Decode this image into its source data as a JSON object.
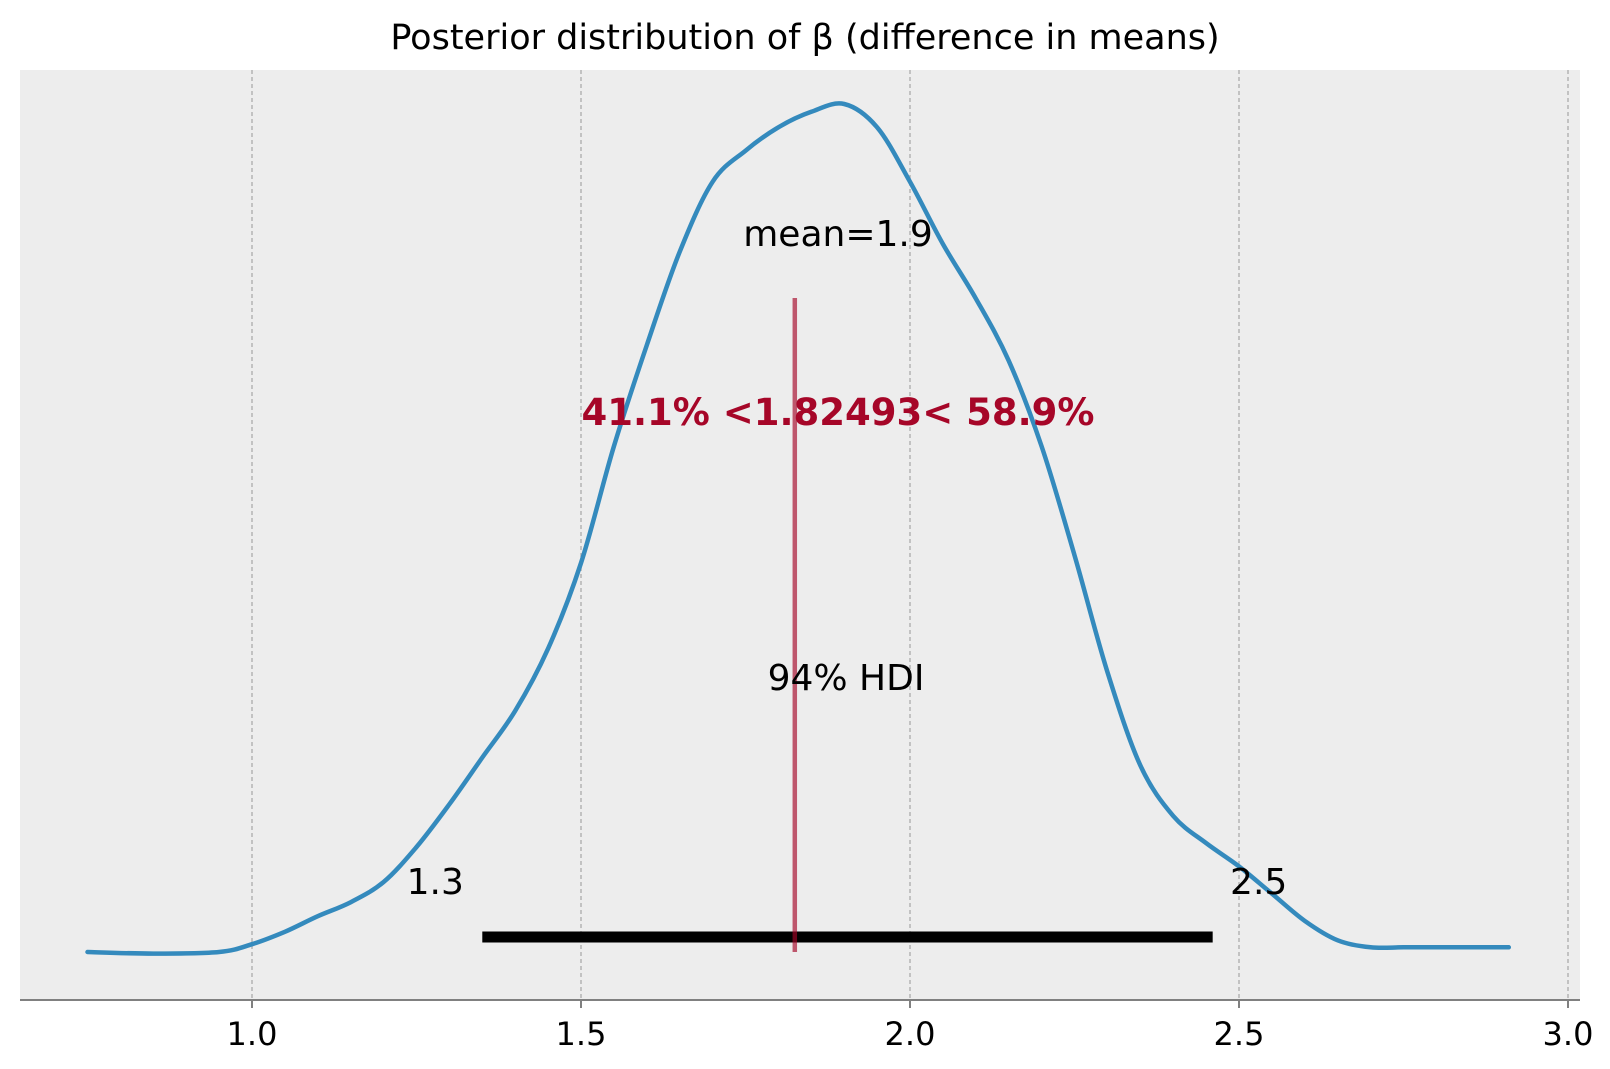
{
  "chart_data": {
    "type": "line",
    "title": "Posterior distribution of β (difference in means)",
    "xlabel": "",
    "ylabel": "",
    "xlim": [
      0.65,
      3.03
    ],
    "xticks": [
      1.0,
      1.5,
      2.0,
      2.5,
      3.0
    ],
    "xtick_labels": [
      "1.0",
      "1.5",
      "2.0",
      "2.5",
      "3.0"
    ],
    "grid": "vertical dashed",
    "density": {
      "x": [
        0.75,
        0.85,
        0.95,
        1.0,
        1.05,
        1.1,
        1.15,
        1.2,
        1.25,
        1.3,
        1.35,
        1.4,
        1.45,
        1.5,
        1.55,
        1.6,
        1.65,
        1.7,
        1.75,
        1.8,
        1.85,
        1.9,
        1.95,
        2.0,
        2.05,
        2.1,
        2.15,
        2.2,
        2.25,
        2.3,
        2.35,
        2.4,
        2.45,
        2.5,
        2.55,
        2.6,
        2.65,
        2.7,
        2.75,
        2.8,
        2.91
      ],
      "y": [
        0.0,
        -0.002,
        0.0,
        0.01,
        0.026,
        0.046,
        0.064,
        0.09,
        0.135,
        0.19,
        0.25,
        0.31,
        0.39,
        0.5,
        0.65,
        0.78,
        0.9,
        0.99,
        1.03,
        1.06,
        1.08,
        1.09,
        1.06,
        0.99,
        0.91,
        0.84,
        0.76,
        0.65,
        0.51,
        0.36,
        0.24,
        0.175,
        0.14,
        0.11,
        0.075,
        0.04,
        0.015,
        0.006,
        0.006,
        0.006,
        0.006
      ]
    },
    "mean_label": "mean=1.9",
    "hdi": {
      "label": "94% HDI",
      "low": 1.35,
      "high": 2.46,
      "low_label": "1.3",
      "high_label": "2.5"
    },
    "ref_line": {
      "value": 1.82493,
      "label": "41.1% <1.82493< 58.9%"
    },
    "colors": {
      "curve": "#348abd",
      "ref_line": "#a60628",
      "ref_text": "#a60628",
      "hdi": "#000000",
      "background": "#ededed",
      "grid": "#b0b0b0",
      "axis": "#808080"
    }
  }
}
